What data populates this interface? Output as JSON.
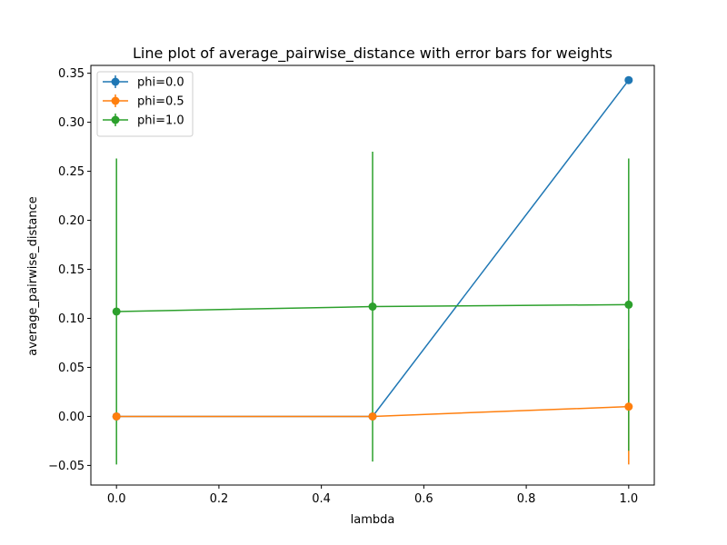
{
  "chart_data": {
    "type": "line",
    "title": "Line plot of average_pairwise_distance with error bars for weights",
    "xlabel": "lambda",
    "ylabel": "average_pairwise_distance",
    "x": [
      0.0,
      0.5,
      1.0
    ],
    "xlim": [
      -0.05,
      1.05
    ],
    "ylim": [
      -0.07,
      0.358
    ],
    "xticks": [
      "0.0",
      "0.2",
      "0.4",
      "0.6",
      "0.8",
      "1.0"
    ],
    "yticks": [
      "−0.05",
      "0.00",
      "0.05",
      "0.10",
      "0.15",
      "0.20",
      "0.25",
      "0.30",
      "0.35"
    ],
    "grid": false,
    "legend_position": "top-left",
    "series": [
      {
        "name": "phi=0.0",
        "color": "#1f77b4",
        "values": [
          0.0,
          0.0,
          0.343
        ],
        "errors": [
          0.0,
          0.0,
          0.0
        ]
      },
      {
        "name": "phi=0.5",
        "color": "#ff7f0e",
        "values": [
          0.0,
          0.0,
          0.01
        ],
        "errors": [
          0.0,
          0.0,
          0.059
        ]
      },
      {
        "name": "phi=1.0",
        "color": "#2ca02c",
        "values": [
          0.107,
          0.112,
          0.114
        ],
        "errors": [
          0.156,
          0.158,
          0.149
        ]
      }
    ]
  }
}
